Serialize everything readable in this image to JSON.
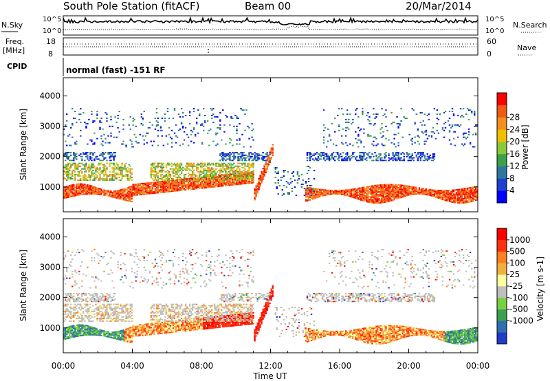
{
  "header": {
    "station": "South Pole Station (fitACF)",
    "beam": "Beam 00",
    "date": "20/Mar/2014",
    "cpid_label": "CPID",
    "cpid_value": "normal (fast) -151 RF"
  },
  "status_panel": {
    "nsky_label": "N.Sky",
    "nsearch_label": "N.Search",
    "nsky_ticks": [
      "10^5",
      "10^0"
    ],
    "nsearch_ticks": [
      "10^5",
      "10^0"
    ],
    "freq_label": "Freq.",
    "freq_unit": "[MHz]",
    "freq_ticks": [
      18,
      8
    ],
    "nave_label": "Nave",
    "nave_ticks": [
      60,
      0
    ]
  },
  "chart_data": [
    {
      "type": "heatmap",
      "name": "power-panel",
      "ylabel": "Slant Range [km]",
      "ylim": [
        180,
        4600
      ],
      "yticks": [
        1000,
        2000,
        3000,
        4000
      ],
      "colorbar_label": "Power [dB]",
      "colorbar_ticks": [
        4,
        8,
        12,
        16,
        20,
        24,
        28
      ],
      "colorbar_range": [
        0,
        32
      ],
      "colors": [
        "#0000ff",
        "#1f3fd0",
        "#2e78a0",
        "#3ca048",
        "#8cc83c",
        "#f0c000",
        "#f09020",
        "#f05a14",
        "#ff0000"
      ]
    },
    {
      "type": "heatmap",
      "name": "velocity-panel",
      "ylabel": "Slant Range [km]",
      "ylim": [
        180,
        4600
      ],
      "yticks": [
        1000,
        2000,
        3000,
        4000
      ],
      "colorbar_label": "Velocity [m s-1]",
      "colorbar_ticks": [
        1000,
        500,
        100,
        25,
        -25,
        -100,
        -500,
        -1000
      ],
      "colors": [
        "#1e3cc8",
        "#2f6fb0",
        "#3ca050",
        "#78d040",
        "#bebebe",
        "#ffffa0",
        "#f0b040",
        "#ff8020",
        "#ff3010",
        "#ff0000"
      ]
    }
  ],
  "x_axis": {
    "label": "Time UT",
    "ticks": [
      "00:00",
      "04:00",
      "08:00",
      "12:00",
      "16:00",
      "20:00",
      "00:00"
    ],
    "range_hours": [
      0,
      24
    ]
  },
  "colors": {
    "axis": "#000000",
    "background": "#ffffff"
  }
}
